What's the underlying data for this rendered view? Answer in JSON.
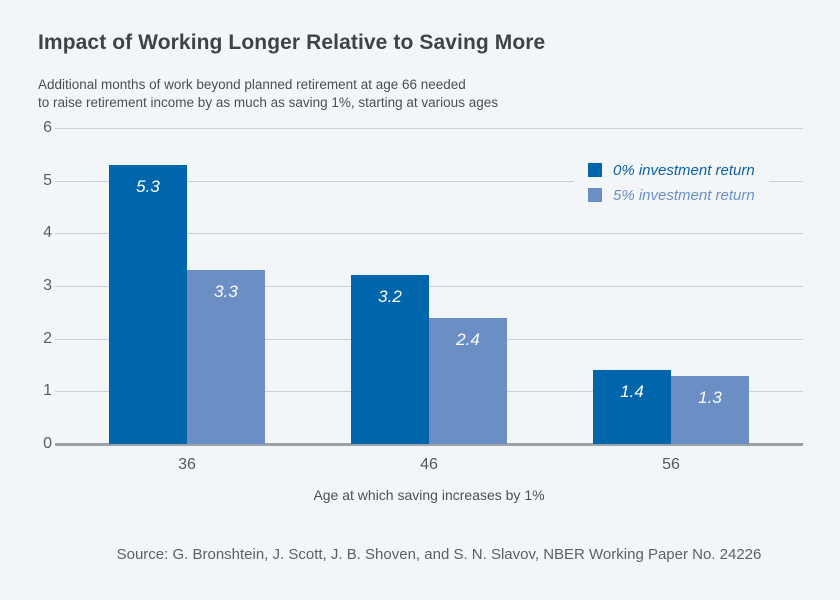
{
  "page": {
    "background_color": "#f3f6f9",
    "title": "Impact of Working Longer Relative to Saving More",
    "subtitle_line1": "Additional months of work beyond planned retirement at age 66 needed",
    "subtitle_line2": "to raise retirement income by as much as saving 1%, starting at various ages",
    "source": "Source: G. Bronshtein, J. Scott, J. B. Shoven, and S. N. Slavov, NBER Working Paper No. 24226"
  },
  "chart_data": {
    "type": "bar",
    "categories": [
      "36",
      "46",
      "56"
    ],
    "series": [
      {
        "name": "0% investment return",
        "color": "#0066ab",
        "label_color": "#0d61a4",
        "values": [
          5.3,
          3.2,
          1.4
        ]
      },
      {
        "name": "5% investment return",
        "color": "#6b8fc5",
        "label_color": "#6b8fc5",
        "values": [
          3.3,
          2.4,
          1.3
        ]
      }
    ],
    "title": "Impact of Working Longer Relative to Saving More",
    "xlabel": "Age at which saving increases by 1%",
    "ylabel": "",
    "ylim": [
      0,
      6
    ],
    "yticks": [
      0,
      1,
      2,
      3,
      4,
      5,
      6
    ],
    "grid": true,
    "grid_color": "#cbd0d6",
    "axis_line_color": "#9aa1a8",
    "legend_position": "top-right",
    "value_labels": true
  }
}
